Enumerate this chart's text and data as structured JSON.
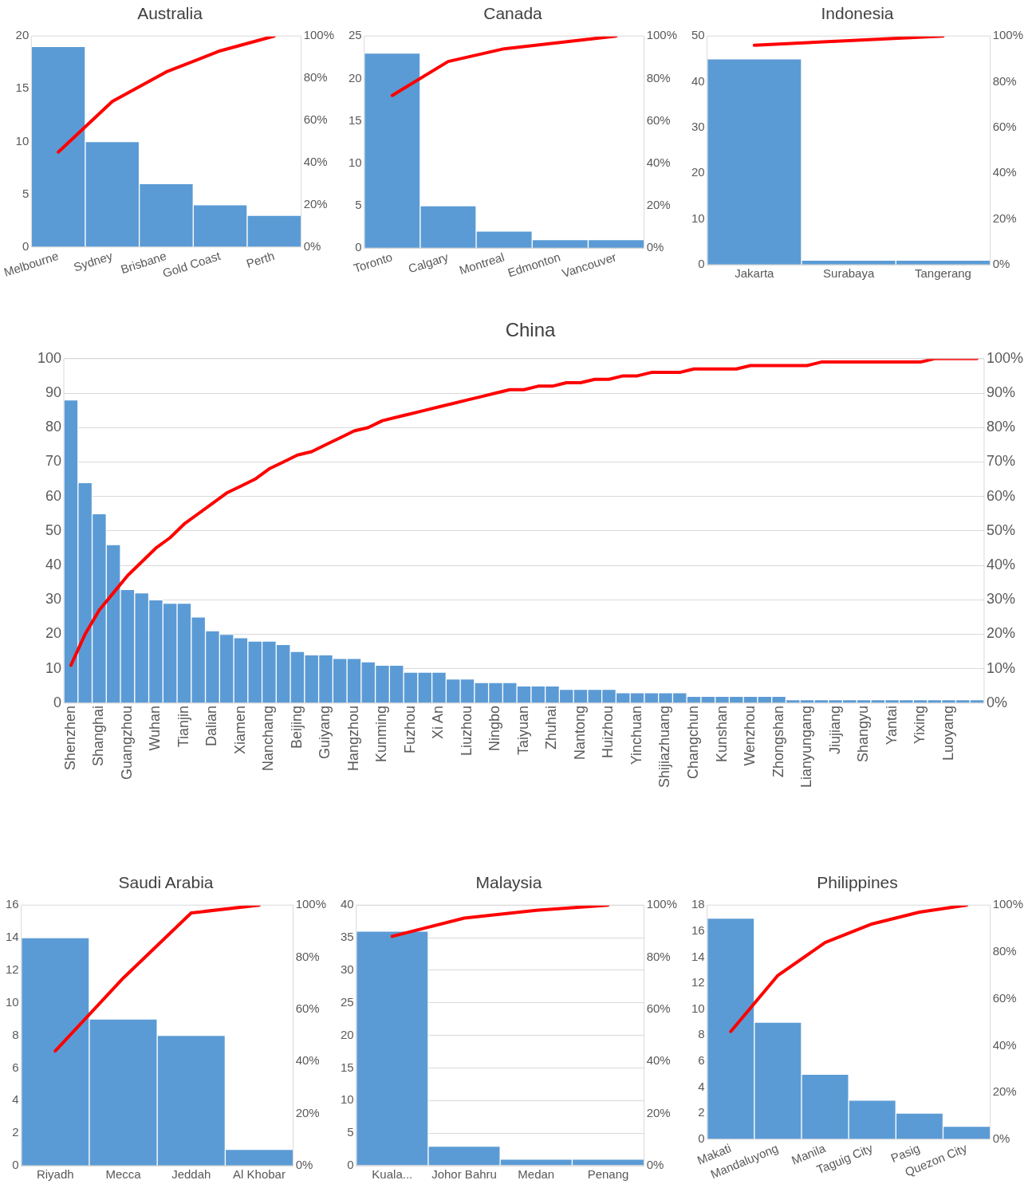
{
  "chart_data": [
    {
      "type": "bar",
      "title": "Australia",
      "categories": [
        "Melbourne",
        "Sydney",
        "Brisbane",
        "Gold Coast",
        "Perth"
      ],
      "series": [
        {
          "color": "#5b9bd5",
          "values": [
            19,
            10,
            6,
            4,
            3
          ]
        },
        {
          "type": "line",
          "axis": "y2",
          "color": "#ff0000",
          "values": [
            45,
            69,
            83,
            93,
            100
          ]
        }
      ],
      "ylim": [
        0,
        20
      ],
      "yticks": [
        0,
        5,
        10,
        15,
        20
      ],
      "y2lim": [
        0,
        100
      ],
      "y2ticks": [
        {
          "value": 0,
          "label": "0%"
        },
        {
          "value": 20,
          "label": "20%"
        },
        {
          "value": 40,
          "label": "40%"
        },
        {
          "value": 60,
          "label": "60%"
        },
        {
          "value": 80,
          "label": "80%"
        },
        {
          "value": 100,
          "label": "100%"
        }
      ],
      "grid": false,
      "legend": false
    },
    {
      "type": "bar",
      "title": "Canada",
      "categories": [
        "Toronto",
        "Calgary",
        "Montreal",
        "Edmonton",
        "Vancouver"
      ],
      "series": [
        {
          "color": "#5b9bd5",
          "values": [
            23,
            5,
            2,
            1,
            1
          ]
        },
        {
          "type": "line",
          "axis": "y2",
          "color": "#ff0000",
          "values": [
            72,
            88,
            94,
            97,
            100
          ]
        }
      ],
      "ylim": [
        0,
        25
      ],
      "yticks": [
        0,
        5,
        10,
        15,
        20,
        25
      ],
      "y2lim": [
        0,
        100
      ],
      "y2ticks": [
        {
          "value": 0,
          "label": "0%"
        },
        {
          "value": 20,
          "label": "20%"
        },
        {
          "value": 40,
          "label": "40%"
        },
        {
          "value": 60,
          "label": "60%"
        },
        {
          "value": 80,
          "label": "80%"
        },
        {
          "value": 100,
          "label": "100%"
        }
      ],
      "grid": false,
      "legend": false
    },
    {
      "type": "bar",
      "title": "Indonesia",
      "categories": [
        "Jakarta",
        "Surabaya",
        "Tangerang"
      ],
      "series": [
        {
          "color": "#5b9bd5",
          "values": [
            45,
            1,
            1
          ]
        },
        {
          "type": "line",
          "axis": "y2",
          "color": "#ff0000",
          "values": [
            96,
            98,
            100
          ]
        }
      ],
      "ylim": [
        0,
        50
      ],
      "yticks": [
        0,
        10,
        20,
        30,
        40,
        50
      ],
      "y2lim": [
        0,
        100
      ],
      "y2ticks": [
        {
          "value": 0,
          "label": "0%"
        },
        {
          "value": 20,
          "label": "20%"
        },
        {
          "value": 40,
          "label": "40%"
        },
        {
          "value": 60,
          "label": "60%"
        },
        {
          "value": 80,
          "label": "80%"
        },
        {
          "value": 100,
          "label": "100%"
        }
      ],
      "grid": false,
      "legend": false
    },
    {
      "type": "bar",
      "title": "China",
      "categories": [
        "Shenzhen",
        null,
        "Shanghai",
        null,
        "Guangzhou",
        null,
        "Wuhan",
        null,
        "Tianjin",
        null,
        "Dalian",
        null,
        "Xiamen",
        null,
        "Nanchang",
        null,
        "Beijing",
        null,
        "Guiyang",
        null,
        "Hangzhou",
        null,
        "Kunming",
        null,
        "Fuzhou",
        null,
        "Xi An",
        null,
        "Liuzhou",
        null,
        "Ningbo",
        null,
        "Taiyuan",
        null,
        "Zhuhai",
        null,
        "Nantong",
        null,
        "Huizhou",
        null,
        "Yinchuan",
        null,
        "Shijiazhuang",
        null,
        "Changchun",
        null,
        "Kunshan",
        null,
        "Wenzhou",
        null,
        "Zhongshan",
        null,
        "Lianyungang",
        null,
        "Jiujiang",
        null,
        "Shangyu",
        null,
        "Yantai",
        null,
        "Yixing",
        null,
        "Luoyang",
        null,
        null
      ],
      "series": [
        {
          "color": "#5b9bd5",
          "values": [
            88,
            64,
            55,
            46,
            33,
            32,
            30,
            29,
            29,
            25,
            21,
            20,
            19,
            18,
            18,
            17,
            15,
            14,
            14,
            13,
            13,
            12,
            11,
            11,
            9,
            9,
            9,
            7,
            7,
            6,
            6,
            6,
            5,
            5,
            5,
            4,
            4,
            4,
            4,
            3,
            3,
            3,
            3,
            3,
            2,
            2,
            2,
            2,
            2,
            2,
            2,
            1,
            1,
            1,
            1,
            1,
            1,
            1,
            1,
            1,
            1,
            1,
            1,
            1,
            1
          ]
        },
        {
          "type": "line",
          "axis": "y2",
          "color": "#ff0000",
          "values": [
            11,
            20,
            27,
            32,
            37,
            41,
            45,
            48,
            52,
            55,
            58,
            61,
            63,
            65,
            68,
            70,
            72,
            73,
            75,
            77,
            79,
            80,
            82,
            83,
            84,
            85,
            86,
            87,
            88,
            89,
            90,
            91,
            91,
            92,
            92,
            93,
            93,
            94,
            94,
            95,
            95,
            96,
            96,
            96,
            97,
            97,
            97,
            97,
            98,
            98,
            98,
            98,
            98,
            99,
            99,
            99,
            99,
            99,
            99,
            99,
            99,
            100,
            100,
            100,
            100
          ]
        }
      ],
      "ylim": [
        0,
        100
      ],
      "yticks": [
        0,
        10,
        20,
        30,
        40,
        50,
        60,
        70,
        80,
        90,
        100
      ],
      "y2lim": [
        0,
        100
      ],
      "y2ticks": [
        {
          "value": 0,
          "label": "0%"
        },
        {
          "value": 10,
          "label": "10%"
        },
        {
          "value": 20,
          "label": "20%"
        },
        {
          "value": 30,
          "label": "30%"
        },
        {
          "value": 40,
          "label": "40%"
        },
        {
          "value": 50,
          "label": "50%"
        },
        {
          "value": 60,
          "label": "60%"
        },
        {
          "value": 70,
          "label": "70%"
        },
        {
          "value": 80,
          "label": "80%"
        },
        {
          "value": 90,
          "label": "90%"
        },
        {
          "value": 100,
          "label": "100%"
        }
      ],
      "grid": "y",
      "legend": false
    },
    {
      "type": "bar",
      "title": "Saudi Arabia",
      "categories": [
        "Riyadh",
        "Mecca",
        "Jeddah",
        "Al Khobar"
      ],
      "series": [
        {
          "color": "#5b9bd5",
          "values": [
            14,
            9,
            8,
            1
          ]
        },
        {
          "type": "line",
          "axis": "y2",
          "color": "#ff0000",
          "values": [
            44,
            72,
            97,
            100
          ]
        }
      ],
      "ylim": [
        0,
        16
      ],
      "yticks": [
        0,
        2,
        4,
        6,
        8,
        10,
        12,
        14,
        16
      ],
      "y2lim": [
        0,
        100
      ],
      "y2ticks": [
        {
          "value": 0,
          "label": "0%"
        },
        {
          "value": 20,
          "label": "20%"
        },
        {
          "value": 40,
          "label": "40%"
        },
        {
          "value": 60,
          "label": "60%"
        },
        {
          "value": 80,
          "label": "80%"
        },
        {
          "value": 100,
          "label": "100%"
        }
      ],
      "grid": false,
      "legend": false
    },
    {
      "type": "bar",
      "title": "Malaysia",
      "categories": [
        "Kuala...",
        "Johor Bahru",
        "Medan",
        "Penang"
      ],
      "series": [
        {
          "color": "#5b9bd5",
          "values": [
            36,
            3,
            1,
            1
          ]
        },
        {
          "type": "line",
          "axis": "y2",
          "color": "#ff0000",
          "values": [
            88,
            95,
            98,
            100
          ]
        }
      ],
      "ylim": [
        0,
        40
      ],
      "yticks": [
        0,
        5,
        10,
        15,
        20,
        25,
        30,
        35,
        40
      ],
      "y2lim": [
        0,
        100
      ],
      "y2ticks": [
        {
          "value": 0,
          "label": "0%"
        },
        {
          "value": 20,
          "label": "20%"
        },
        {
          "value": 40,
          "label": "40%"
        },
        {
          "value": 60,
          "label": "60%"
        },
        {
          "value": 80,
          "label": "80%"
        },
        {
          "value": 100,
          "label": "100%"
        }
      ],
      "grid": "y",
      "legend": false
    },
    {
      "type": "bar",
      "title": "Philippines",
      "categories": [
        "Makati",
        "Mandaluyong",
        "Manila",
        "Taguig City",
        "Pasig",
        "Quezon City"
      ],
      "series": [
        {
          "color": "#5b9bd5",
          "values": [
            17,
            9,
            5,
            3,
            2,
            1
          ]
        },
        {
          "type": "line",
          "axis": "y2",
          "color": "#ff0000",
          "values": [
            46,
            70,
            84,
            92,
            97,
            100
          ]
        }
      ],
      "ylim": [
        0,
        18
      ],
      "yticks": [
        0,
        2,
        4,
        6,
        8,
        10,
        12,
        14,
        16,
        18
      ],
      "y2lim": [
        0,
        100
      ],
      "y2ticks": [
        {
          "value": 0,
          "label": "0%"
        },
        {
          "value": 20,
          "label": "20%"
        },
        {
          "value": 40,
          "label": "40%"
        },
        {
          "value": 60,
          "label": "60%"
        },
        {
          "value": 80,
          "label": "80%"
        },
        {
          "value": 100,
          "label": "100%"
        }
      ],
      "grid": false,
      "legend": false
    }
  ]
}
